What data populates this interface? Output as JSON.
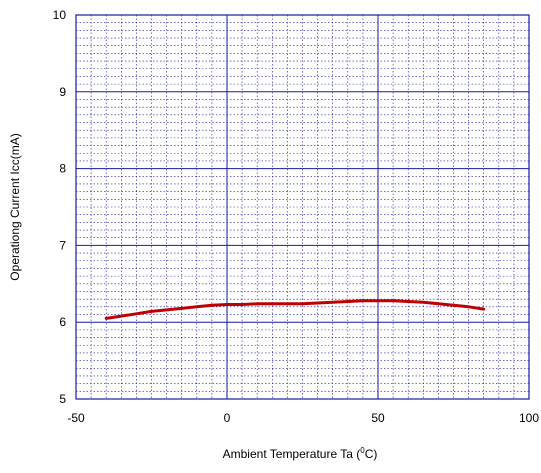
{
  "chart_data": {
    "type": "line",
    "xlabel": "Ambient Temperature  Ta (",
    "xlabel_sup": "0",
    "xlabel_unit": "C)",
    "ylabel": "Operationg Current  Icc(mA)",
    "xlim": [
      -50,
      100
    ],
    "ylim": [
      5,
      10
    ],
    "x_ticks": [
      "-50",
      "0",
      "50",
      "100"
    ],
    "y_ticks": [
      "5",
      "6",
      "7",
      "8",
      "9",
      "10"
    ],
    "grid": true,
    "series": [
      {
        "x": [
          -40,
          -35,
          -30,
          -25,
          -20,
          -15,
          -10,
          -5,
          0,
          5,
          10,
          15,
          20,
          25,
          30,
          35,
          40,
          45,
          50,
          55,
          60,
          65,
          70,
          75,
          80,
          85
        ],
        "y": [
          6.05,
          6.08,
          6.11,
          6.14,
          6.16,
          6.18,
          6.2,
          6.22,
          6.23,
          6.23,
          6.24,
          6.24,
          6.24,
          6.24,
          6.25,
          6.26,
          6.27,
          6.28,
          6.28,
          6.28,
          6.27,
          6.26,
          6.24,
          6.22,
          6.2,
          6.17
        ],
        "color": "#c00000"
      }
    ],
    "colors": {
      "frame": "#1a1aa0",
      "major_grid": "#1a1aa0",
      "minor_grid": "#1a1aa0",
      "series": "#c00000"
    }
  }
}
